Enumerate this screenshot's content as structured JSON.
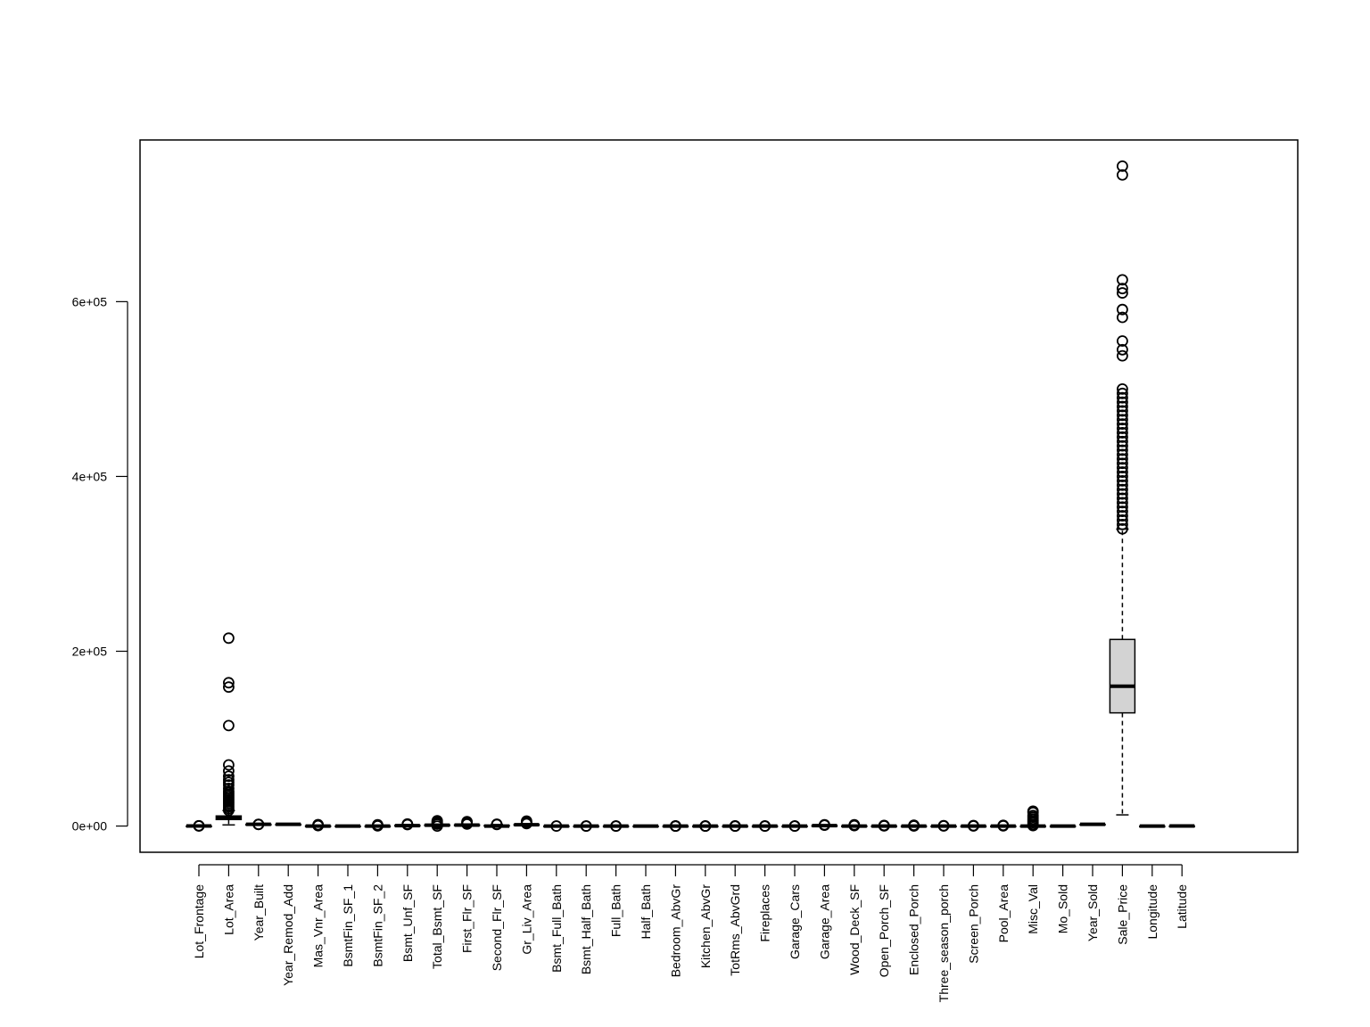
{
  "chart_data": {
    "type": "boxplot",
    "title": "",
    "xlabel": "",
    "ylabel": "",
    "ylim": [
      -30000,
      785000
    ],
    "yticks": [
      0,
      200000,
      400000,
      600000
    ],
    "ytick_labels": [
      "0e+00",
      "2e+05",
      "4e+05",
      "6e+05"
    ],
    "box_fill": "#d3d3d3",
    "categories": [
      "Lot_Frontage",
      "Lot_Area",
      "Year_Built",
      "Year_Remod_Add",
      "Mas_Vnr_Area",
      "BsmtFin_SF_1",
      "BsmtFin_SF_2",
      "Bsmt_Unf_SF",
      "Total_Bsmt_SF",
      "First_Flr_SF",
      "Second_Flr_SF",
      "Gr_Liv_Area",
      "Bsmt_Full_Bath",
      "Bsmt_Half_Bath",
      "Full_Bath",
      "Half_Bath",
      "Bedroom_AbvGr",
      "Kitchen_AbvGr",
      "TotRms_AbvGrd",
      "Fireplaces",
      "Garage_Cars",
      "Garage_Area",
      "Wood_Deck_SF",
      "Open_Porch_SF",
      "Enclosed_Porch",
      "Three_season_porch",
      "Screen_Porch",
      "Pool_Area",
      "Misc_Val",
      "Mo_Sold",
      "Year_Sold",
      "Sale_Price",
      "Longitude",
      "Latitude"
    ],
    "boxes": [
      {
        "min": 0,
        "q1": 40,
        "median": 63,
        "q3": 78,
        "max": 135,
        "outliers": [
          150,
          200,
          313
        ]
      },
      {
        "min": 1300,
        "q1": 7440,
        "median": 9436,
        "q3": 11555,
        "max": 17700,
        "outliers": [
          18000,
          20000,
          22000,
          24000,
          26000,
          28000,
          30000,
          32000,
          34000,
          36000,
          38000,
          40000,
          43000,
          47000,
          50000,
          53000,
          57000,
          63000,
          70000,
          115000,
          159000,
          164000,
          215000
        ]
      },
      {
        "min": 1885,
        "q1": 1954,
        "median": 1973,
        "q3": 2001,
        "max": 2010,
        "outliers": [
          1872,
          1875,
          1880
        ]
      },
      {
        "min": 1950,
        "q1": 1965,
        "median": 1993,
        "q3": 2004,
        "max": 2010,
        "outliers": []
      },
      {
        "min": 0,
        "q1": 0,
        "median": 0,
        "q3": 163,
        "max": 406,
        "outliers": [
          500,
          800,
          1100,
          1600
        ]
      },
      {
        "min": 1,
        "q1": 3,
        "median": 3,
        "q3": 7,
        "max": 7,
        "outliers": []
      },
      {
        "min": 0,
        "q1": 0,
        "median": 0,
        "q3": 0,
        "max": 0,
        "outliers": [
          200,
          600,
          1000,
          1526
        ]
      },
      {
        "min": 0,
        "q1": 219,
        "median": 465,
        "q3": 802,
        "max": 1677,
        "outliers": [
          1700,
          2000,
          2336
        ]
      },
      {
        "min": 0,
        "q1": 793,
        "median": 990,
        "q3": 1302,
        "max": 2015,
        "outliers": [
          0,
          2100,
          3000,
          4000,
          5000,
          6110
        ]
      },
      {
        "min": 334,
        "q1": 876,
        "median": 1084,
        "q3": 1384,
        "max": 2144,
        "outliers": [
          2300,
          3000,
          4000,
          5095
        ]
      },
      {
        "min": 0,
        "q1": 0,
        "median": 0,
        "q3": 704,
        "max": 1760,
        "outliers": [
          1800,
          2065
        ]
      },
      {
        "min": 334,
        "q1": 1126,
        "median": 1442,
        "q3": 1743,
        "max": 2667,
        "outliers": [
          2800,
          3500,
          4500,
          5642
        ]
      },
      {
        "min": 0,
        "q1": 0,
        "median": 0,
        "q3": 1,
        "max": 2,
        "outliers": [
          3
        ]
      },
      {
        "min": 0,
        "q1": 0,
        "median": 0,
        "q3": 0,
        "max": 0,
        "outliers": [
          1,
          2
        ]
      },
      {
        "min": 0,
        "q1": 1,
        "median": 2,
        "q3": 2,
        "max": 3,
        "outliers": [
          0,
          4
        ]
      },
      {
        "min": 0,
        "q1": 0,
        "median": 0,
        "q3": 1,
        "max": 2,
        "outliers": []
      },
      {
        "min": 1,
        "q1": 2,
        "median": 3,
        "q3": 3,
        "max": 4,
        "outliers": [
          0,
          5,
          6,
          8
        ]
      },
      {
        "min": 1,
        "q1": 1,
        "median": 1,
        "q3": 1,
        "max": 1,
        "outliers": [
          0,
          2,
          3
        ]
      },
      {
        "min": 3,
        "q1": 5,
        "median": 6,
        "q3": 7,
        "max": 10,
        "outliers": [
          11,
          12,
          15
        ]
      },
      {
        "min": 0,
        "q1": 0,
        "median": 1,
        "q3": 1,
        "max": 2,
        "outliers": [
          3,
          4
        ]
      },
      {
        "min": 0,
        "q1": 1,
        "median": 2,
        "q3": 2,
        "max": 3,
        "outliers": [
          4,
          5
        ]
      },
      {
        "min": 0,
        "q1": 320,
        "median": 480,
        "q3": 576,
        "max": 960,
        "outliers": [
          1000,
          1200,
          1488
        ]
      },
      {
        "min": 0,
        "q1": 0,
        "median": 0,
        "q3": 168,
        "max": 420,
        "outliers": [
          500,
          800,
          1424
        ]
      },
      {
        "min": 0,
        "q1": 0,
        "median": 27,
        "q3": 70,
        "max": 172,
        "outliers": [
          200,
          400,
          742
        ]
      },
      {
        "min": 0,
        "q1": 0,
        "median": 0,
        "q3": 0,
        "max": 0,
        "outliers": [
          100,
          400,
          1012
        ]
      },
      {
        "min": 0,
        "q1": 0,
        "median": 0,
        "q3": 0,
        "max": 0,
        "outliers": [
          150,
          508
        ]
      },
      {
        "min": 0,
        "q1": 0,
        "median": 0,
        "q3": 0,
        "max": 0,
        "outliers": [
          100,
          576
        ]
      },
      {
        "min": 0,
        "q1": 0,
        "median": 0,
        "q3": 0,
        "max": 0,
        "outliers": [
          300,
          800
        ]
      },
      {
        "min": 0,
        "q1": 0,
        "median": 0,
        "q3": 0,
        "max": 0,
        "outliers": [
          500,
          2000,
          4000,
          6000,
          8000,
          10000,
          12000,
          15500,
          17000
        ]
      },
      {
        "min": 1,
        "q1": 4,
        "median": 6,
        "q3": 8,
        "max": 12,
        "outliers": []
      },
      {
        "min": 2006,
        "q1": 2007,
        "median": 2008,
        "q3": 2009,
        "max": 2010,
        "outliers": []
      },
      {
        "min": 12789,
        "q1": 129500,
        "median": 160000,
        "q3": 213500,
        "max": 339750,
        "outliers": [
          340000,
          345000,
          350000,
          355000,
          360000,
          365000,
          370000,
          375000,
          380000,
          385000,
          390000,
          395000,
          400000,
          405000,
          410000,
          415000,
          420000,
          425000,
          430000,
          435000,
          440000,
          445000,
          450000,
          455000,
          460000,
          465000,
          470000,
          475000,
          480000,
          485000,
          490000,
          495000,
          500000,
          538000,
          545000,
          555000,
          582000,
          591000,
          610000,
          615000,
          625000,
          745000,
          755000
        ]
      },
      {
        "min": -93.69,
        "q1": -93.66,
        "median": -93.64,
        "q3": -93.62,
        "max": -93.58,
        "outliers": []
      },
      {
        "min": 41.99,
        "q1": 42.02,
        "median": 42.03,
        "q3": 42.05,
        "max": 42.06,
        "outliers": []
      }
    ]
  }
}
